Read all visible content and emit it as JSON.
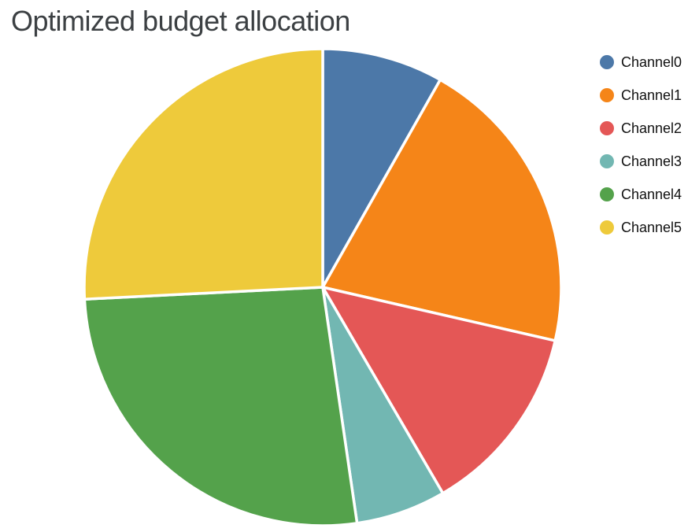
{
  "chart_data": {
    "type": "pie",
    "title": "Optimized budget allocation",
    "labels": [
      "Channel0",
      "Channel1",
      "Channel2",
      "Channel3",
      "Channel4",
      "Channel5"
    ],
    "values_pct": [
      8.2,
      20.4,
      13.0,
      6.1,
      26.5,
      25.8
    ],
    "colors": [
      "#4C78A8",
      "#F58518",
      "#E45756",
      "#72B7B2",
      "#54A24B",
      "#EECA3B"
    ],
    "start_angle_deg": 0,
    "direction": "clockwise",
    "legend_position": "right",
    "slice_gap_color": "#ffffff",
    "title_color": "#3c4043",
    "legend_text_color": "#111111"
  },
  "legend": {
    "items": [
      {
        "label": "Channel0",
        "color": "#4C78A8"
      },
      {
        "label": "Channel1",
        "color": "#F58518"
      },
      {
        "label": "Channel2",
        "color": "#E45756"
      },
      {
        "label": "Channel3",
        "color": "#72B7B2"
      },
      {
        "label": "Channel4",
        "color": "#54A24B"
      },
      {
        "label": "Channel5",
        "color": "#EECA3B"
      }
    ]
  }
}
